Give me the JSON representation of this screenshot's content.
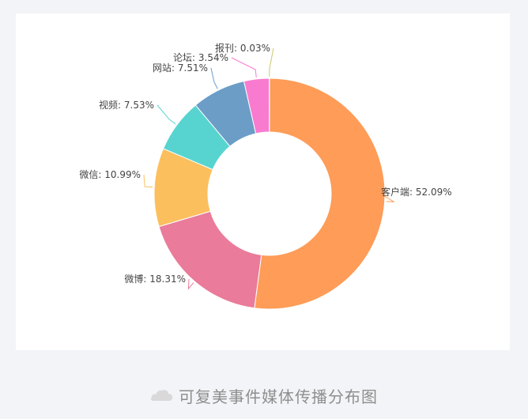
{
  "chart_data": {
    "type": "pie",
    "donut": true,
    "slices": [
      {
        "label": "客户端: 52.09%",
        "name": "客户端",
        "value": 52.09,
        "color": "#fe9c58"
      },
      {
        "label": "微博: 18.31%",
        "name": "微博",
        "value": 18.31,
        "color": "#ea7b9a"
      },
      {
        "label": "微信: 10.99%",
        "name": "微信",
        "value": 10.99,
        "color": "#fcbf5d"
      },
      {
        "label": "视频: 7.53%",
        "name": "视频",
        "value": 7.53,
        "color": "#58d4d0"
      },
      {
        "label": "网站: 7.51%",
        "name": "网站",
        "value": 7.51,
        "color": "#6b9dc7"
      },
      {
        "label": "论坛: 3.54%",
        "name": "论坛",
        "value": 3.54,
        "color": "#f97bcf"
      },
      {
        "label": "报刊: 0.03%",
        "name": "报刊",
        "value": 0.03,
        "color": "#c9c96a"
      }
    ]
  },
  "caption": {
    "icon": "cloud-icon",
    "text": "可复美事件媒体传播分布图"
  }
}
